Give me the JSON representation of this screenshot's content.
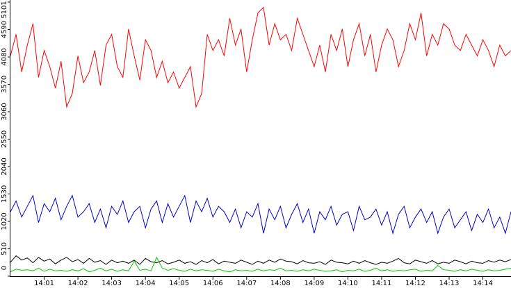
{
  "chart_data": {
    "type": "line",
    "categories": [
      null,
      null,
      null,
      null,
      null,
      null,
      "14:01",
      null,
      null,
      null,
      null,
      null,
      "14:02",
      null,
      null,
      null,
      null,
      null,
      "14:03",
      null,
      null,
      null,
      null,
      null,
      "14:04",
      null,
      null,
      null,
      null,
      null,
      "14:05",
      null,
      null,
      null,
      null,
      null,
      "14:06",
      null,
      null,
      null,
      null,
      null,
      "14:07",
      null,
      null,
      null,
      null,
      null,
      "14:08",
      null,
      null,
      null,
      null,
      null,
      "14:09",
      null,
      null,
      null,
      null,
      null,
      "14:10",
      null,
      null,
      null,
      null,
      null,
      "14:11",
      null,
      null,
      null,
      null,
      null,
      "14:12",
      null,
      null,
      null,
      null,
      null,
      "14:13",
      null,
      null,
      null,
      null,
      null,
      "14:14",
      null,
      null,
      null,
      null,
      null
    ],
    "ylim": [
      0,
      5101
    ],
    "yticks": [
      0,
      510,
      1020,
      1530,
      2040,
      2550,
      3060,
      3570,
      4080,
      4590,
      5101
    ],
    "series": [
      {
        "color": "#ff0000",
        "values": [
          4100,
          4500,
          3800,
          4300,
          4700,
          3700,
          4200,
          3900,
          3500,
          4000,
          3150,
          3400,
          4100,
          3600,
          3800,
          4200,
          3550,
          4300,
          4500,
          3900,
          3700,
          4600,
          4100,
          3650,
          4400,
          4200,
          3700,
          4000,
          3600,
          3800,
          3500,
          3700,
          3900,
          3150,
          3400,
          4500,
          4200,
          4400,
          4100,
          4800,
          4300,
          4600,
          3800,
          4400,
          4900,
          5000,
          4300,
          4700,
          4400,
          4500,
          4200,
          4800,
          4500,
          4200,
          3900,
          4300,
          3800,
          4500,
          4200,
          4600,
          3900,
          4400,
          4700,
          4100,
          4500,
          3800,
          4300,
          4600,
          4400,
          3900,
          4200,
          4700,
          4400,
          4900,
          4100,
          4500,
          4300,
          4700,
          4600,
          4300,
          4200,
          4500,
          4300,
          4100,
          4400,
          4200,
          3900,
          4300,
          4100,
          4200
        ]
      },
      {
        "color": "#0000cc",
        "values": [
          1200,
          1400,
          1100,
          1300,
          1500,
          1000,
          1350,
          1200,
          1450,
          1050,
          1300,
          1500,
          1100,
          1200,
          1350,
          1000,
          1250,
          900,
          1300,
          1150,
          1400,
          1000,
          1200,
          1300,
          900,
          1250,
          1400,
          1000,
          1350,
          1100,
          1300,
          1500,
          1000,
          1400,
          1200,
          1450,
          1100,
          1300,
          1200,
          1000,
          1250,
          900,
          1200,
          1100,
          1350,
          800,
          1250,
          1050,
          1300,
          900,
          1150,
          1350,
          1000,
          1250,
          800,
          1200,
          1050,
          1300,
          950,
          1150,
          1200,
          850,
          1300,
          1050,
          1100,
          1250,
          950,
          1200,
          800,
          1150,
          1300,
          900,
          1100,
          1250,
          1000,
          1200,
          800,
          1100,
          1250,
          900,
          1050,
          1200,
          850,
          1150,
          1000,
          1250,
          900,
          1100,
          800,
          1200
        ]
      },
      {
        "color": "#000000",
        "values": [
          260,
          380,
          300,
          340,
          250,
          350,
          280,
          320,
          230,
          300,
          350,
          270,
          310,
          240,
          330,
          260,
          290,
          220,
          300,
          250,
          280,
          240,
          300,
          220,
          330,
          270,
          250,
          290,
          230,
          260,
          300,
          240,
          270,
          220,
          290,
          250,
          310,
          230,
          280,
          260,
          240,
          300,
          260,
          220,
          280,
          240,
          300,
          260,
          320,
          280,
          270,
          230,
          290,
          250,
          240,
          270,
          220,
          300,
          260,
          250,
          230,
          280,
          240,
          290,
          250,
          220,
          260,
          240,
          280,
          330,
          250,
          230,
          300,
          270,
          240,
          290,
          230,
          260,
          240,
          300,
          270,
          230,
          280,
          250,
          240,
          290,
          260,
          300,
          270,
          310
        ]
      },
      {
        "color": "#00cc00",
        "values": [
          80,
          130,
          110,
          120,
          100,
          150,
          90,
          130,
          100,
          110,
          90,
          120,
          100,
          140,
          80,
          110,
          150,
          100,
          130,
          90,
          120,
          100,
          280,
          110,
          130,
          100,
          350,
          150,
          110,
          140,
          110,
          90,
          130,
          100,
          120,
          110,
          90,
          130,
          100,
          80,
          120,
          100,
          110,
          90,
          130,
          100,
          120,
          110,
          150,
          100,
          110,
          90,
          120,
          100,
          130,
          110,
          90,
          100,
          120,
          80,
          110,
          100,
          130,
          90,
          110,
          150,
          100,
          120,
          90,
          110,
          100,
          120,
          130,
          90,
          110,
          100,
          200,
          120,
          110,
          90,
          120,
          100,
          130,
          110,
          90,
          120,
          100,
          110,
          130,
          150
        ]
      }
    ]
  }
}
